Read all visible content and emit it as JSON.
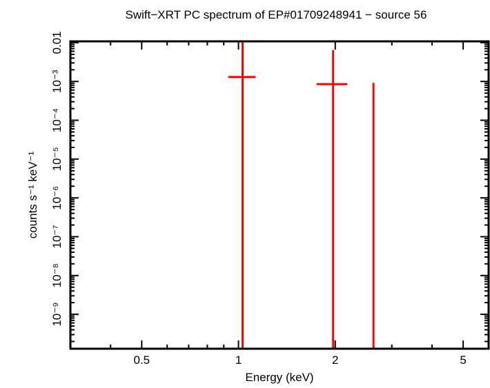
{
  "chart_data": {
    "type": "scatter",
    "title": "Swift−XRT PC spectrum of EP#01709248941 − source 56",
    "xlabel": "Energy (keV)",
    "ylabel": "counts s⁻¹ keV⁻¹",
    "xscale": "log",
    "yscale": "log",
    "xlim": [
      0.3,
      6.0
    ],
    "ylim": [
      1.3e-10,
      0.0108
    ],
    "grid": false,
    "x_ticks": [
      {
        "value": 0.5,
        "label": "0.5"
      },
      {
        "value": 1,
        "label": "1"
      },
      {
        "value": 2,
        "label": "2"
      },
      {
        "value": 5,
        "label": "5"
      }
    ],
    "y_ticks": [
      {
        "value": 0.01,
        "label": "0.01"
      },
      {
        "value": 0.001,
        "label": "10⁻³"
      },
      {
        "value": 0.0001,
        "label": "10⁻⁴"
      },
      {
        "value": 1e-05,
        "label": "10⁻⁵"
      },
      {
        "value": 1e-06,
        "label": "10⁻⁶"
      },
      {
        "value": 1e-07,
        "label": "10⁻⁷"
      },
      {
        "value": 1e-08,
        "label": "10⁻⁸"
      },
      {
        "value": 1e-09,
        "label": "10⁻⁹"
      }
    ],
    "series": [
      {
        "color": "#ff0000",
        "points": [
          {
            "x": 1.03,
            "xlo": 0.93,
            "xhi": 1.13,
            "y": 0.0013,
            "ylo": 1e-10,
            "yhi": 0.02
          },
          {
            "x": 1.97,
            "xlo": 1.75,
            "xhi": 2.18,
            "y": 0.00085,
            "ylo": 1e-10,
            "yhi": 0.0064
          },
          {
            "x": 2.63,
            "xlo": 2.63,
            "xhi": 2.63,
            "y": 0.00092,
            "ylo": 1e-10,
            "yhi": 0.00092
          }
        ]
      }
    ]
  }
}
